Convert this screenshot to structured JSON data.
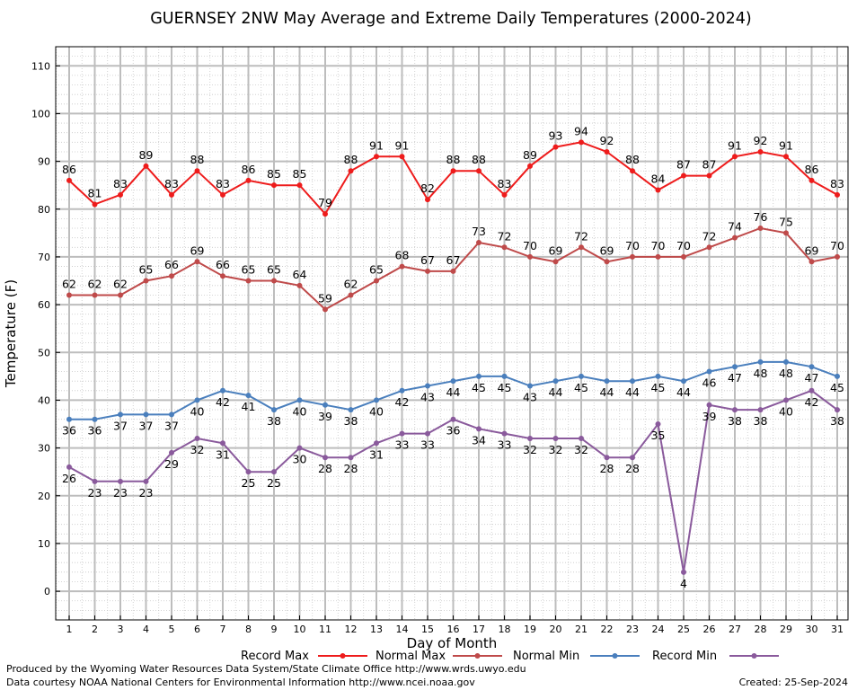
{
  "chart_data": {
    "type": "line",
    "title": "GUERNSEY 2NW May Average and Extreme Daily Temperatures (2000-2024)",
    "xlabel": "Day of Month",
    "ylabel": "Temperature (F)",
    "ylim": [
      -6,
      114
    ],
    "y_ticks": [
      0,
      10,
      20,
      30,
      40,
      50,
      60,
      70,
      80,
      90,
      100,
      110
    ],
    "x": [
      1,
      2,
      3,
      4,
      5,
      6,
      7,
      8,
      9,
      10,
      11,
      12,
      13,
      14,
      15,
      16,
      17,
      18,
      19,
      20,
      21,
      22,
      23,
      24,
      25,
      26,
      27,
      28,
      29,
      30,
      31
    ],
    "grid": true,
    "legend_position": "bottom",
    "series": [
      {
        "name": "Record Max",
        "color": "#ee1c1c",
        "label_pos": "above",
        "values": [
          86,
          81,
          83,
          89,
          83,
          88,
          83,
          86,
          85,
          85,
          79,
          88,
          91,
          91,
          82,
          88,
          88,
          83,
          89,
          93,
          94,
          92,
          88,
          84,
          87,
          87,
          91,
          92,
          91,
          86,
          83
        ]
      },
      {
        "name": "Normal Max",
        "color": "#bf4a4a",
        "label_pos": "above",
        "values": [
          62,
          62,
          62,
          65,
          66,
          69,
          66,
          65,
          65,
          64,
          59,
          62,
          65,
          68,
          67,
          67,
          73,
          72,
          70,
          69,
          72,
          69,
          70,
          70,
          70,
          72,
          74,
          76,
          75,
          69,
          70
        ]
      },
      {
        "name": "Normal Min",
        "color": "#4a7fbd",
        "label_pos": "below",
        "values": [
          36,
          36,
          37,
          37,
          37,
          40,
          42,
          41,
          38,
          40,
          39,
          38,
          40,
          42,
          43,
          44,
          45,
          45,
          43,
          44,
          45,
          44,
          44,
          45,
          44,
          46,
          47,
          48,
          48,
          47,
          45
        ]
      },
      {
        "name": "Record Min",
        "color": "#8a5a9c",
        "label_pos": "below",
        "values": [
          26,
          23,
          23,
          23,
          29,
          32,
          31,
          25,
          25,
          30,
          28,
          28,
          31,
          33,
          33,
          36,
          34,
          33,
          32,
          32,
          32,
          28,
          28,
          35,
          4,
          39,
          38,
          38,
          40,
          42,
          38
        ]
      }
    ]
  },
  "footer": {
    "line1": "Produced by the Wyoming Water Resources Data System/State Climate Office http://www.wrds.uwyo.edu",
    "line2": "Data courtesy NOAA National Centers for Environmental Information http://www.ncei.noaa.gov",
    "created": "Created:  25-Sep-2024"
  }
}
